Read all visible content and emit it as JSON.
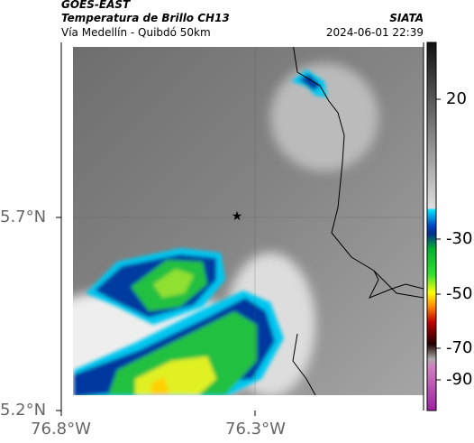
{
  "header": {
    "satellite": "GOES-EAST",
    "product": "Temperatura de Brillo CH13",
    "region": "Vía Medellín - Quibdó 50km",
    "source": "SIATA",
    "datetime": "2024-06-01 22:39"
  },
  "axes": {
    "latitude_ticks": [
      "5.7°N",
      "5.2°N"
    ],
    "longitude_ticks": [
      "76.8°W",
      "76.3°W"
    ]
  },
  "colorbar": {
    "ticks": [
      20,
      -30,
      -50,
      -70,
      -90
    ]
  }
}
